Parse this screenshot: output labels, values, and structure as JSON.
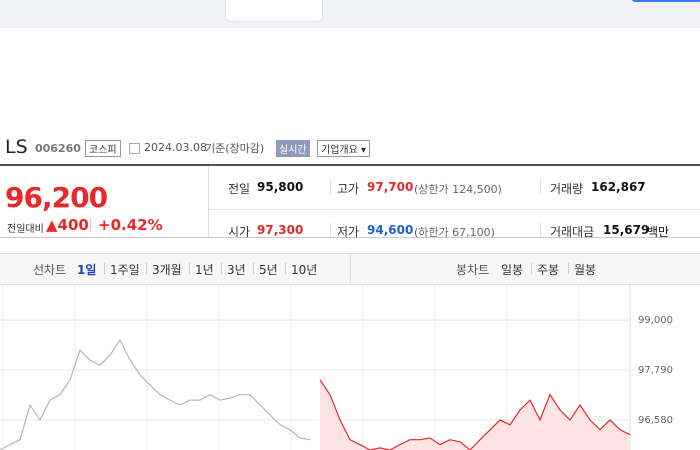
{
  "header": {
    "name": "LS",
    "code": "006260",
    "market": "코스피",
    "date": "2024.03.08",
    "basis": "기준(장마감)",
    "realtime": "실시간",
    "overview": "기업개요"
  },
  "price": {
    "current": "96,200",
    "change_label": "전일대비",
    "change": "400",
    "rate": "+0.42%"
  },
  "stats": [
    {
      "label": "전일",
      "value": "95,800"
    },
    {
      "label": "고가",
      "value": "97,700",
      "note": "(상한가 124,500)"
    },
    {
      "label": "거래량",
      "value": "162,867"
    },
    {
      "label": "시가",
      "value": "97,300"
    },
    {
      "label": "저가",
      "value": "94,600",
      "note": "(하한가 67,100)"
    },
    {
      "label": "거래대금",
      "value": "15,679",
      "unit": "백만"
    }
  ],
  "tabs": {
    "line_label": "선차트",
    "line_periods": [
      "1일",
      "1주일",
      "3개월",
      "1년",
      "3년",
      "5년",
      "10년"
    ],
    "candle_label": "봉차트",
    "candle_periods": [
      "일봉",
      "주봉",
      "월봉"
    ]
  },
  "chart_data": {
    "type": "line",
    "x": [
      0,
      1,
      2,
      3,
      4,
      5,
      6,
      7,
      8,
      9,
      10,
      11,
      12,
      13,
      14,
      15,
      16,
      17,
      18,
      19,
      20,
      21,
      22,
      23,
      24,
      25,
      26,
      27,
      28,
      29,
      30,
      31,
      32,
      33,
      34,
      35,
      36,
      37,
      38,
      39,
      40,
      41,
      42,
      43,
      44,
      45,
      46,
      47,
      48,
      49,
      50,
      51,
      52,
      53,
      54,
      55,
      56,
      57,
      58,
      59,
      60,
      61,
      62,
      63
    ],
    "xlim": [
      0,
      63
    ],
    "ylim": [
      95850,
      99730
    ],
    "yticks": [
      {
        "value": 96580,
        "label": "96,580"
      },
      {
        "value": 97790,
        "label": "97,790"
      },
      {
        "value": 99000,
        "label": "99,000"
      }
    ],
    "grid": true,
    "series": [
      {
        "color": "#b5b5b5",
        "values": [
          95850,
          95980,
          96100,
          96940,
          96580,
          97060,
          97190,
          97550,
          98270,
          98030,
          97910,
          98150,
          98520,
          98030,
          97670,
          97430,
          97190,
          97060,
          96940,
          97060,
          97060,
          97190,
          97060,
          97110,
          97190,
          97190,
          96940,
          96700,
          96460,
          96340,
          96140,
          96100,
          null,
          null,
          null,
          null,
          null,
          null,
          null,
          null,
          null,
          null,
          null,
          null,
          null,
          null,
          null,
          null,
          null,
          null,
          null,
          null,
          null,
          null,
          null,
          null,
          null,
          null,
          null,
          null,
          null,
          null,
          null,
          null
        ]
      },
      {
        "color": "#e8282b",
        "fill": "#fde3e3",
        "values": [
          null,
          null,
          null,
          null,
          null,
          null,
          null,
          null,
          null,
          null,
          null,
          null,
          null,
          null,
          null,
          null,
          null,
          null,
          null,
          null,
          null,
          null,
          null,
          null,
          null,
          null,
          null,
          null,
          null,
          null,
          null,
          null,
          97550,
          97190,
          96580,
          96100,
          95980,
          95850,
          95900,
          95850,
          95980,
          96100,
          96100,
          96140,
          95980,
          96100,
          96050,
          95850,
          96100,
          96340,
          96580,
          96460,
          96820,
          97060,
          96580,
          97190,
          96820,
          96580,
          96940,
          96580,
          96340,
          96580,
          96340,
          96220
        ]
      }
    ]
  }
}
